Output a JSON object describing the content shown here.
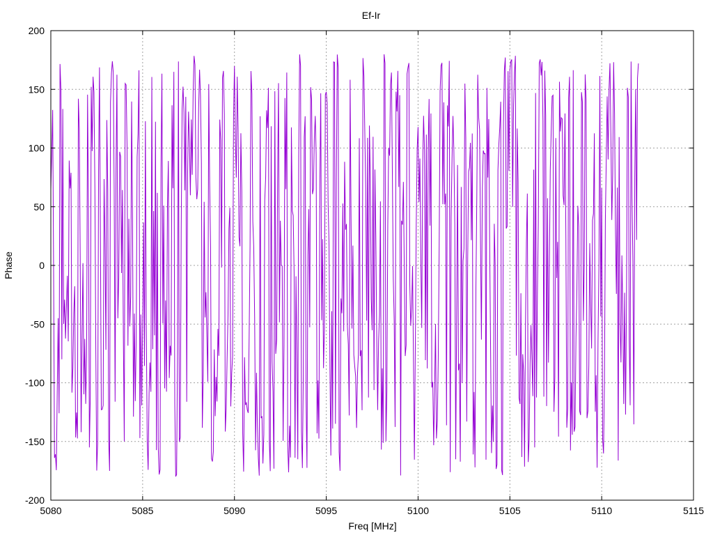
{
  "chart_data": {
    "type": "line",
    "title": "Ef-Ir",
    "xlabel": "Freq [MHz]",
    "ylabel": "Phase",
    "xlim": [
      5080,
      5115
    ],
    "ylim": [
      -200,
      200
    ],
    "x_ticks": [
      "5080",
      "5085",
      "5090",
      "5095",
      "5100",
      "5105",
      "5110",
      "5115"
    ],
    "y_ticks": [
      "200",
      "150",
      "100",
      "50",
      "0",
      "-50",
      "-100",
      "-150",
      "-200"
    ],
    "grid": true,
    "series": [
      {
        "color": "#9400d3",
        "x_start": 5080,
        "x_end": 5112,
        "x_step": 0.05,
        "note_values_approx": "dense noisy phase trace spanning roughly -180 to 180 degrees",
        "y_range_observed": [
          -180,
          180
        ]
      }
    ]
  }
}
